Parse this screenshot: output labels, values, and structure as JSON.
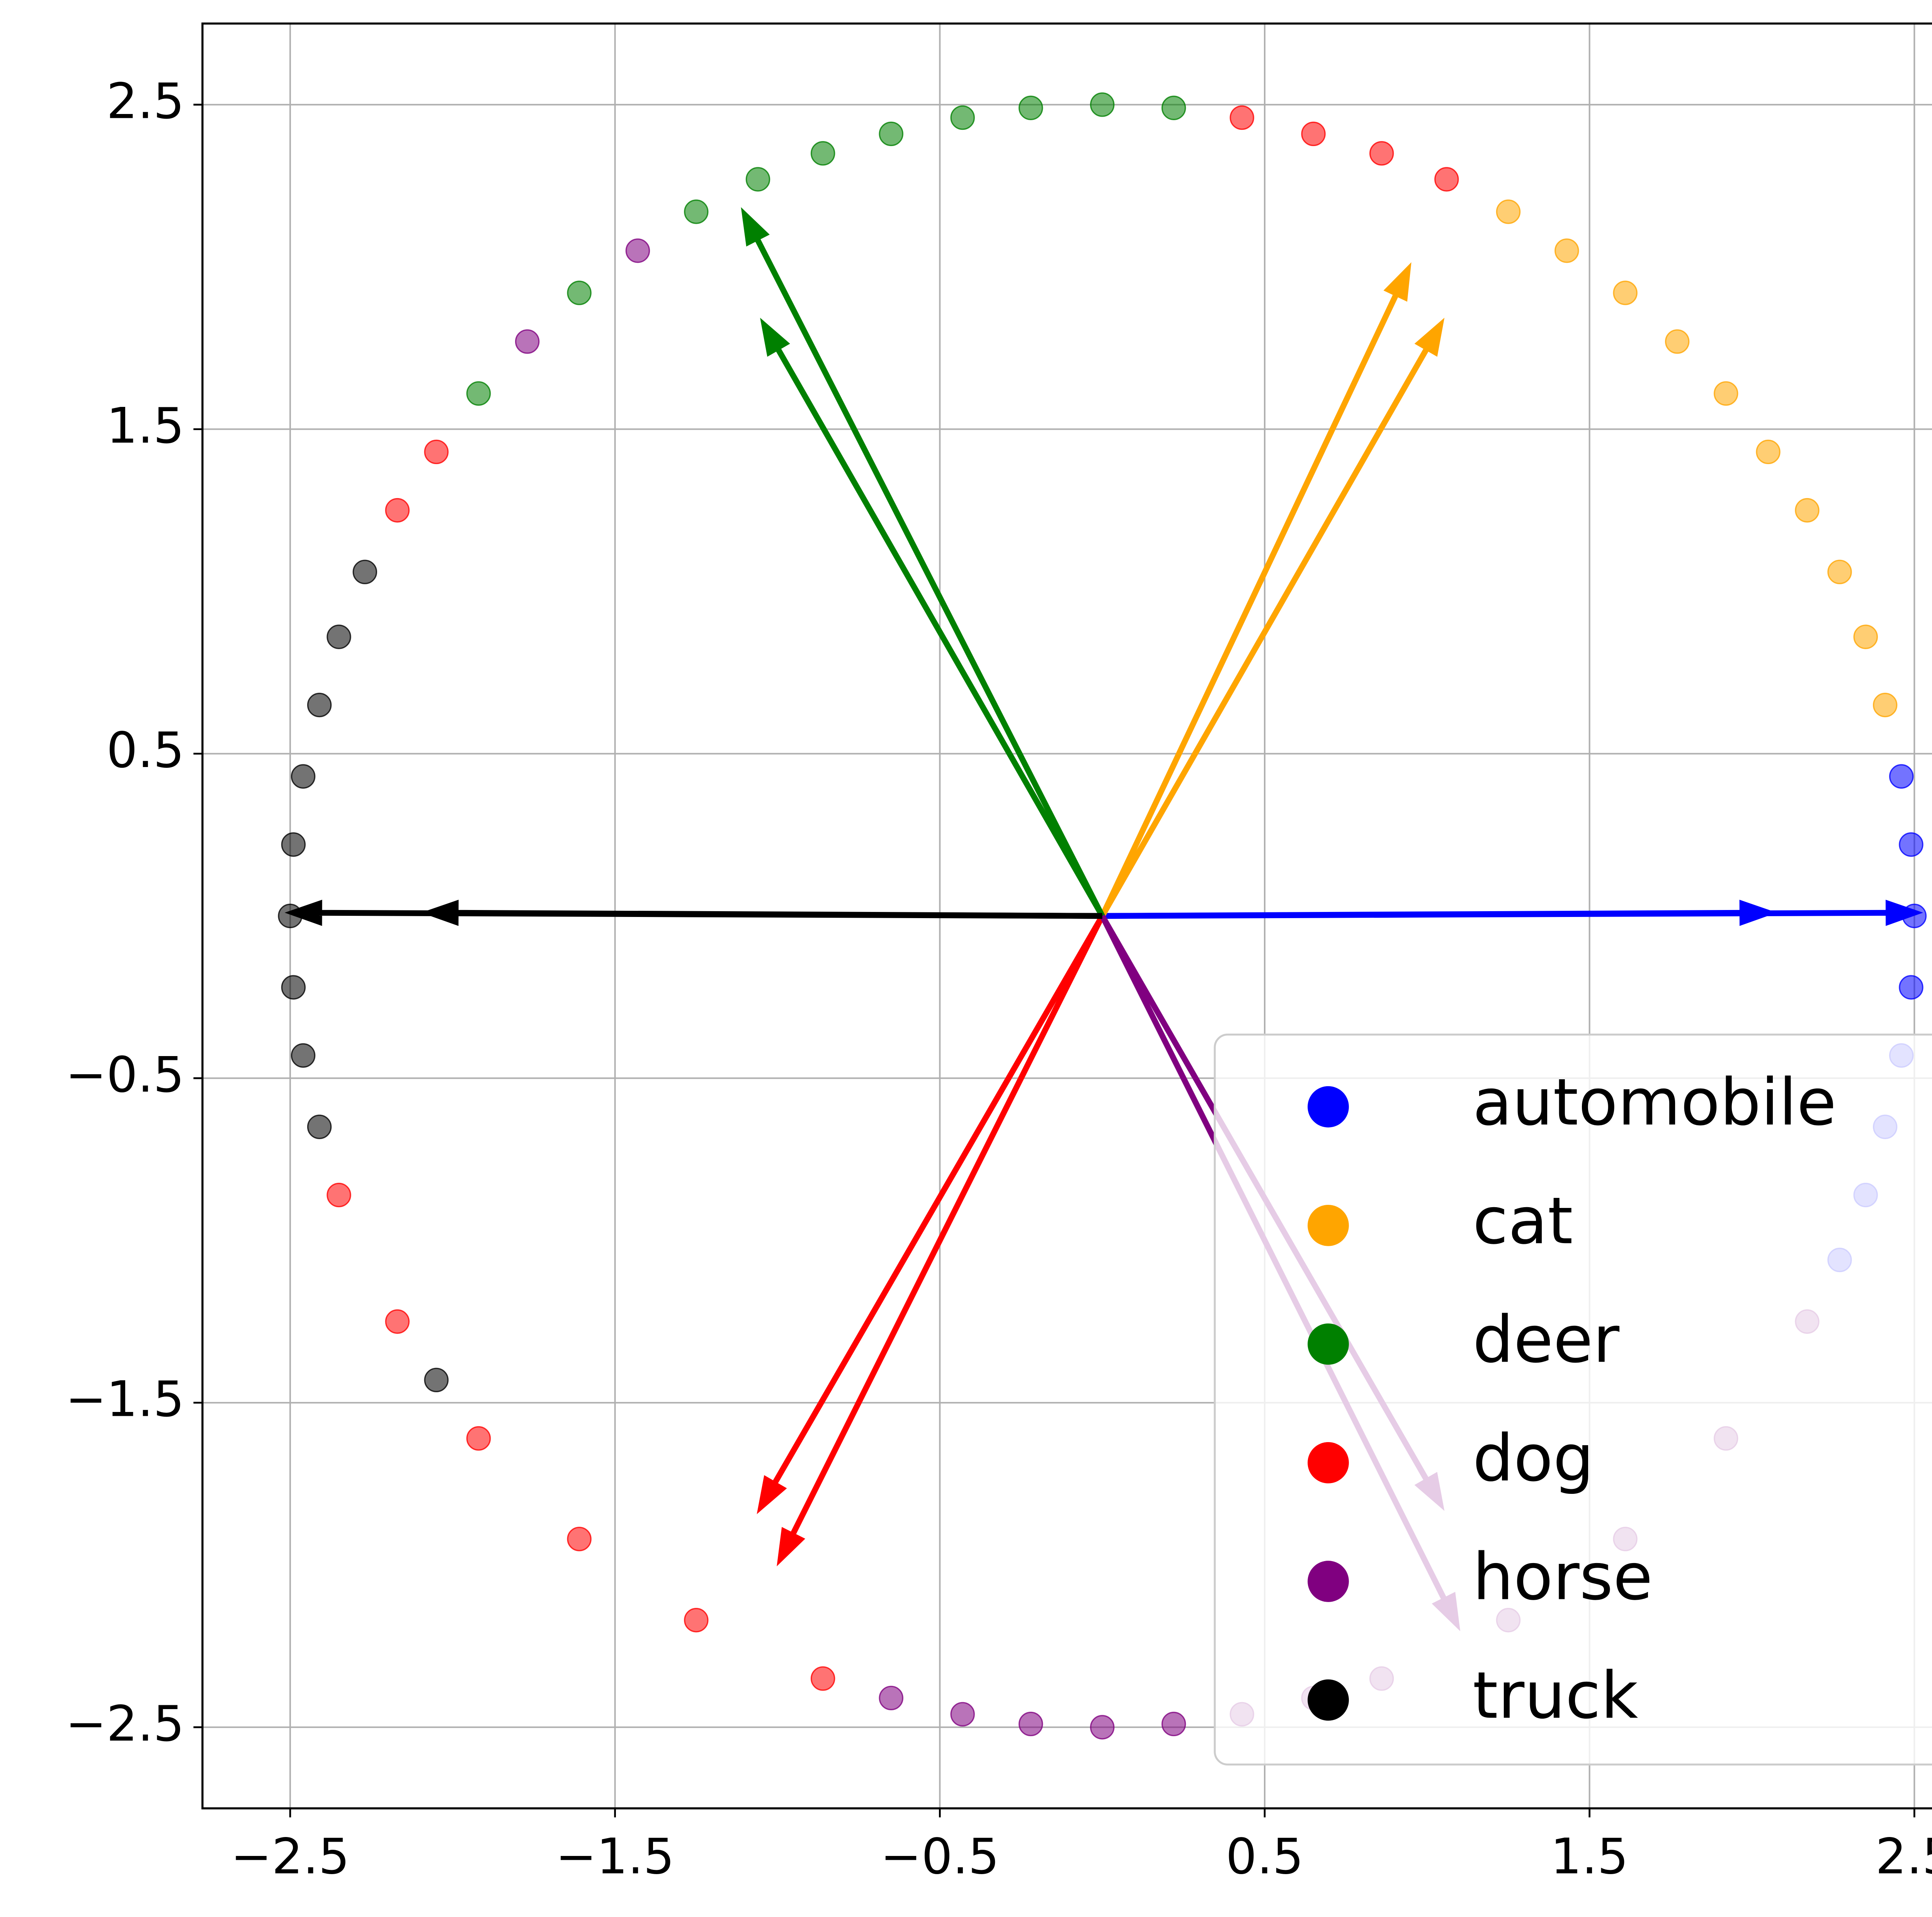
{
  "chart_data": {
    "type": "vector",
    "xlim": [
      -2.77,
      2.76
    ],
    "ylim": [
      -2.75,
      2.75
    ],
    "xticks": [
      {
        "value": -2.5,
        "label": "−2.5"
      },
      {
        "value": -1.5,
        "label": "−1.5"
      },
      {
        "value": -0.5,
        "label": "−0.5"
      },
      0.5,
      1.5,
      2.5
    ],
    "yticks": [
      {
        "value": -2.5,
        "label": "−2.5"
      },
      {
        "value": -1.5,
        "label": "−1.5"
      },
      {
        "value": -0.5,
        "label": "−0.5"
      },
      0.5,
      1.5,
      2.5
    ],
    "grid": true,
    "legend": "lower right",
    "series": [
      {
        "name": "automobile",
        "color": "#0000ff",
        "x": [
          2.5,
          2.49,
          2.49,
          2.46,
          2.41,
          2.46,
          2.35,
          2.27
        ],
        "y": [
          0,
          0.22,
          -0.22,
          -0.43,
          -0.65,
          0.43,
          -0.86,
          -1.06
        ],
        "arrows_x": [
          2.05,
          2.5
        ],
        "arrows_y": [
          0.01,
          0.01
        ]
      },
      {
        "name": "cat",
        "color": "#ffa500",
        "x": [
          2.41,
          2.35,
          2.27,
          2.17,
          2.05,
          1.92,
          1.77,
          1.61,
          1.43,
          1.25
        ],
        "y": [
          0.65,
          0.86,
          1.06,
          1.25,
          1.43,
          1.61,
          1.77,
          1.92,
          2.05,
          2.17
        ],
        "arrows_x": [
          0.94,
          1.04
        ],
        "arrows_y": [
          1.99,
          1.82
        ]
      },
      {
        "name": "deer",
        "color": "#008000",
        "x": [
          0.22,
          0,
          -0.22,
          -0.43,
          -0.65,
          -0.86,
          -1.06,
          -1.25,
          -1.61,
          -1.92
        ],
        "y": [
          2.49,
          2.5,
          2.49,
          2.46,
          2.41,
          2.35,
          2.27,
          2.17,
          1.92,
          1.61
        ],
        "arrows_x": [
          -1.1,
          -1.04
        ],
        "arrows_y": [
          2.16,
          1.82
        ]
      },
      {
        "name": "dog",
        "color": "#ff0000",
        "x": [
          0.86,
          0.65,
          0.43,
          -2.05,
          -2.17,
          -2.35,
          -2.17,
          -1.92,
          -1.61,
          -1.25,
          -0.86,
          1.06
        ],
        "y": [
          2.35,
          2.41,
          2.46,
          1.43,
          1.25,
          -0.86,
          -1.25,
          -1.61,
          -1.92,
          -2.17,
          -2.35,
          2.27
        ],
        "arrows_x": [
          -1.05,
          -0.99
        ],
        "arrows_y": [
          -1.82,
          -1.98
        ]
      },
      {
        "name": "horse",
        "color": "#800080",
        "x": [
          -0.65,
          -0.43,
          -0.22,
          0,
          0.22,
          0.43,
          0.65,
          0.86,
          1.25,
          1.61,
          1.92,
          2.17,
          -1.43,
          -1.77
        ],
        "y": [
          -2.41,
          -2.46,
          -2.49,
          -2.5,
          -2.49,
          -2.46,
          -2.41,
          -2.35,
          -2.17,
          -1.92,
          -1.61,
          -1.25,
          2.05,
          1.77
        ],
        "arrows_x": [
          1.04,
          1.09
        ],
        "arrows_y": [
          -1.81,
          -2.18
        ]
      },
      {
        "name": "truck",
        "color": "#000000",
        "x": [
          -2.35,
          -2.41,
          -2.46,
          -2.49,
          -2.5,
          -2.49,
          -2.46,
          -2.41,
          -2.27,
          -2.05
        ],
        "y": [
          0.86,
          0.65,
          0.43,
          0.22,
          0,
          -0.22,
          -0.43,
          -0.65,
          1.06,
          -1.43
        ],
        "arrows_x": [
          -2.49,
          -2.07
        ],
        "arrows_y": [
          0.01,
          0.01
        ]
      }
    ]
  }
}
